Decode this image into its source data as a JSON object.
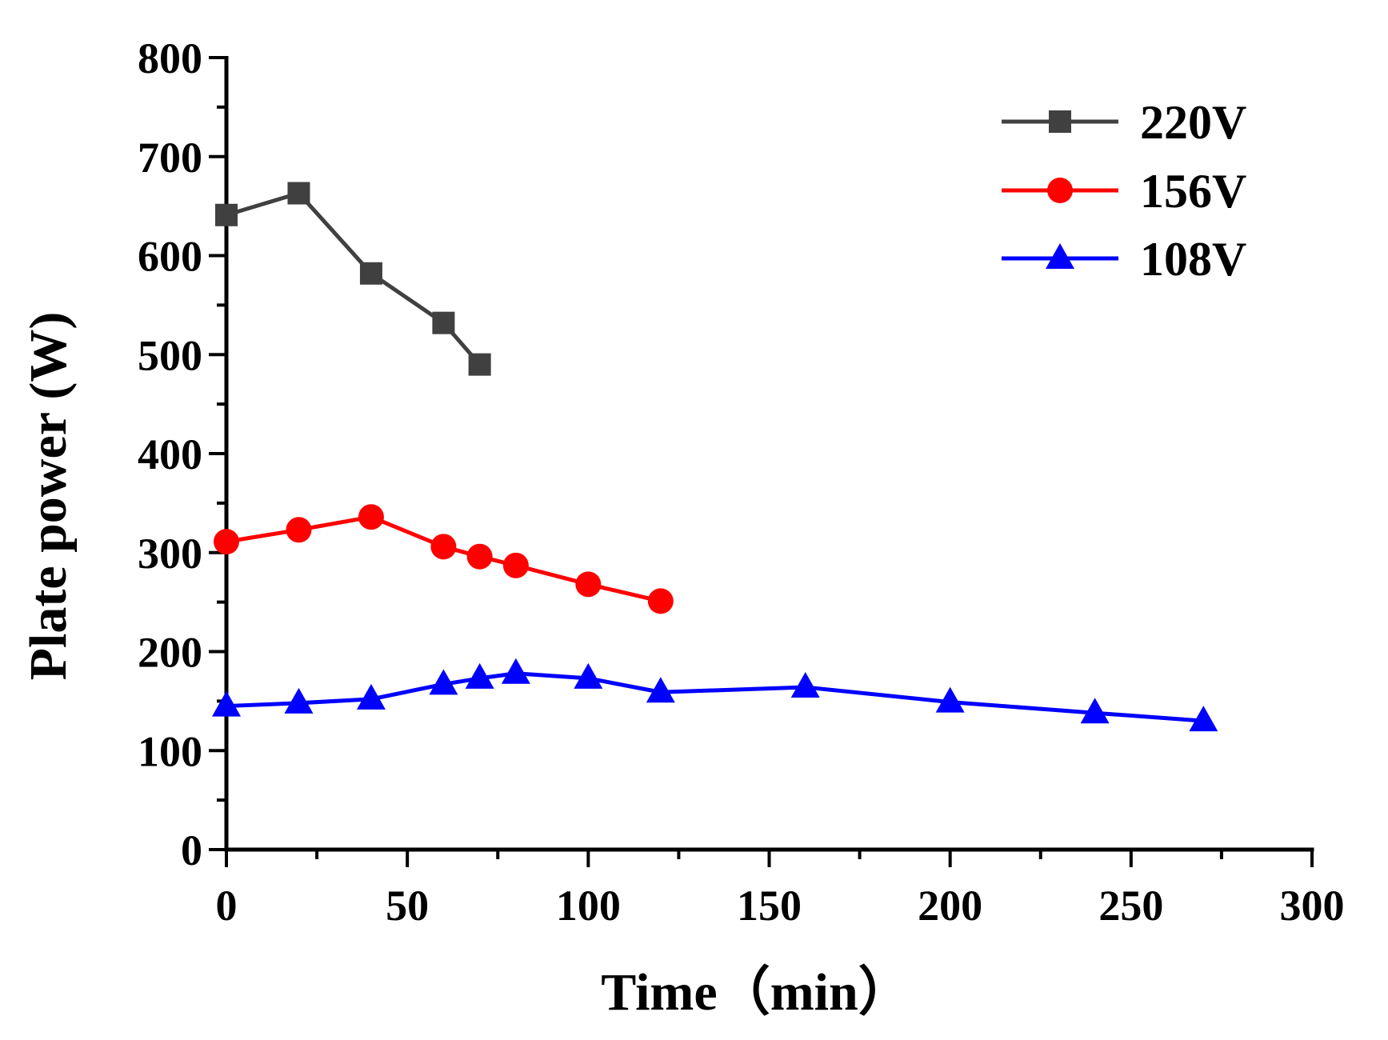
{
  "chart_data": {
    "type": "line",
    "title": "",
    "xlabel": "Time（min）",
    "ylabel": "Plate power (W)",
    "xlim": [
      0,
      300
    ],
    "ylim": [
      0,
      800
    ],
    "xticks": [
      0,
      50,
      100,
      150,
      200,
      250,
      300
    ],
    "xtick_labels": [
      "0",
      "50",
      "100",
      "150",
      "200",
      "250",
      "300"
    ],
    "yticks": [
      0,
      100,
      200,
      300,
      400,
      500,
      600,
      700,
      800
    ],
    "ytick_labels": [
      "0",
      "100",
      "200",
      "300",
      "400",
      "500",
      "600",
      "700",
      "800"
    ],
    "grid": false,
    "legend_position": "top-right",
    "series": [
      {
        "name": "220V",
        "color": "#404040",
        "marker": "square",
        "x": [
          0,
          20,
          40,
          60,
          70
        ],
        "y": [
          641,
          663,
          582,
          532,
          490
        ]
      },
      {
        "name": "156V",
        "color": "#ff0000",
        "marker": "circle",
        "x": [
          0,
          20,
          40,
          60,
          70,
          80,
          100,
          120
        ],
        "y": [
          311,
          323,
          336,
          306,
          296,
          287,
          268,
          251
        ]
      },
      {
        "name": "108V",
        "color": "#0000ff",
        "marker": "triangle",
        "x": [
          0,
          20,
          40,
          60,
          70,
          80,
          100,
          120,
          160,
          200,
          240,
          270
        ],
        "y": [
          145,
          148,
          152,
          167,
          173,
          178,
          173,
          159,
          164,
          149,
          138,
          130
        ]
      }
    ]
  }
}
